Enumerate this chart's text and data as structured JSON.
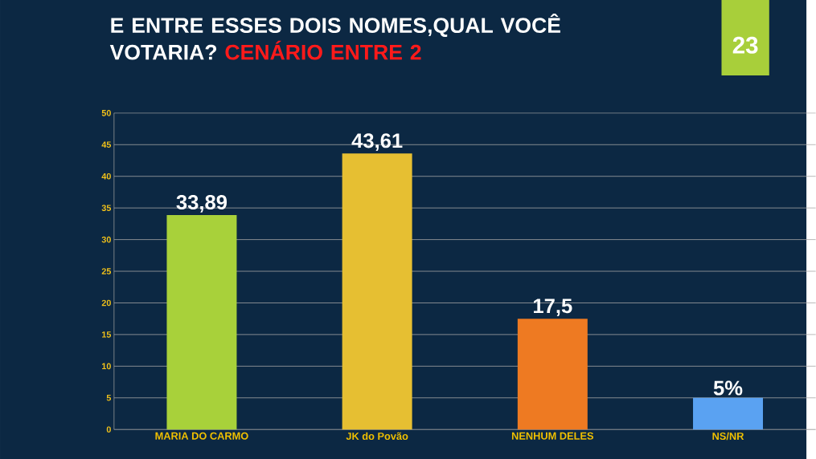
{
  "chart_data": {
    "type": "bar",
    "title": "E ENTRE ESSES DOIS NOMES,QUAL VOCÊ VOTARIA?",
    "subtitle": "CENÁRIO ENTRE 2",
    "categories": [
      "MARIA DO CARMO",
      "JK do Povão",
      "NENHUM DELES",
      "NS/NR"
    ],
    "values": [
      33.89,
      43.61,
      17.5,
      5
    ],
    "value_labels": [
      "33,89",
      "43,61",
      "17,5",
      "5%"
    ],
    "colors": [
      "#a8d13a",
      "#e6bf32",
      "#ee7a22",
      "#5aa2f2"
    ],
    "ylim": [
      0,
      50
    ],
    "yticks": [
      0,
      5,
      10,
      15,
      20,
      25,
      30,
      35,
      40,
      45,
      50
    ],
    "grid": "y",
    "annotations": [
      "23"
    ]
  }
}
